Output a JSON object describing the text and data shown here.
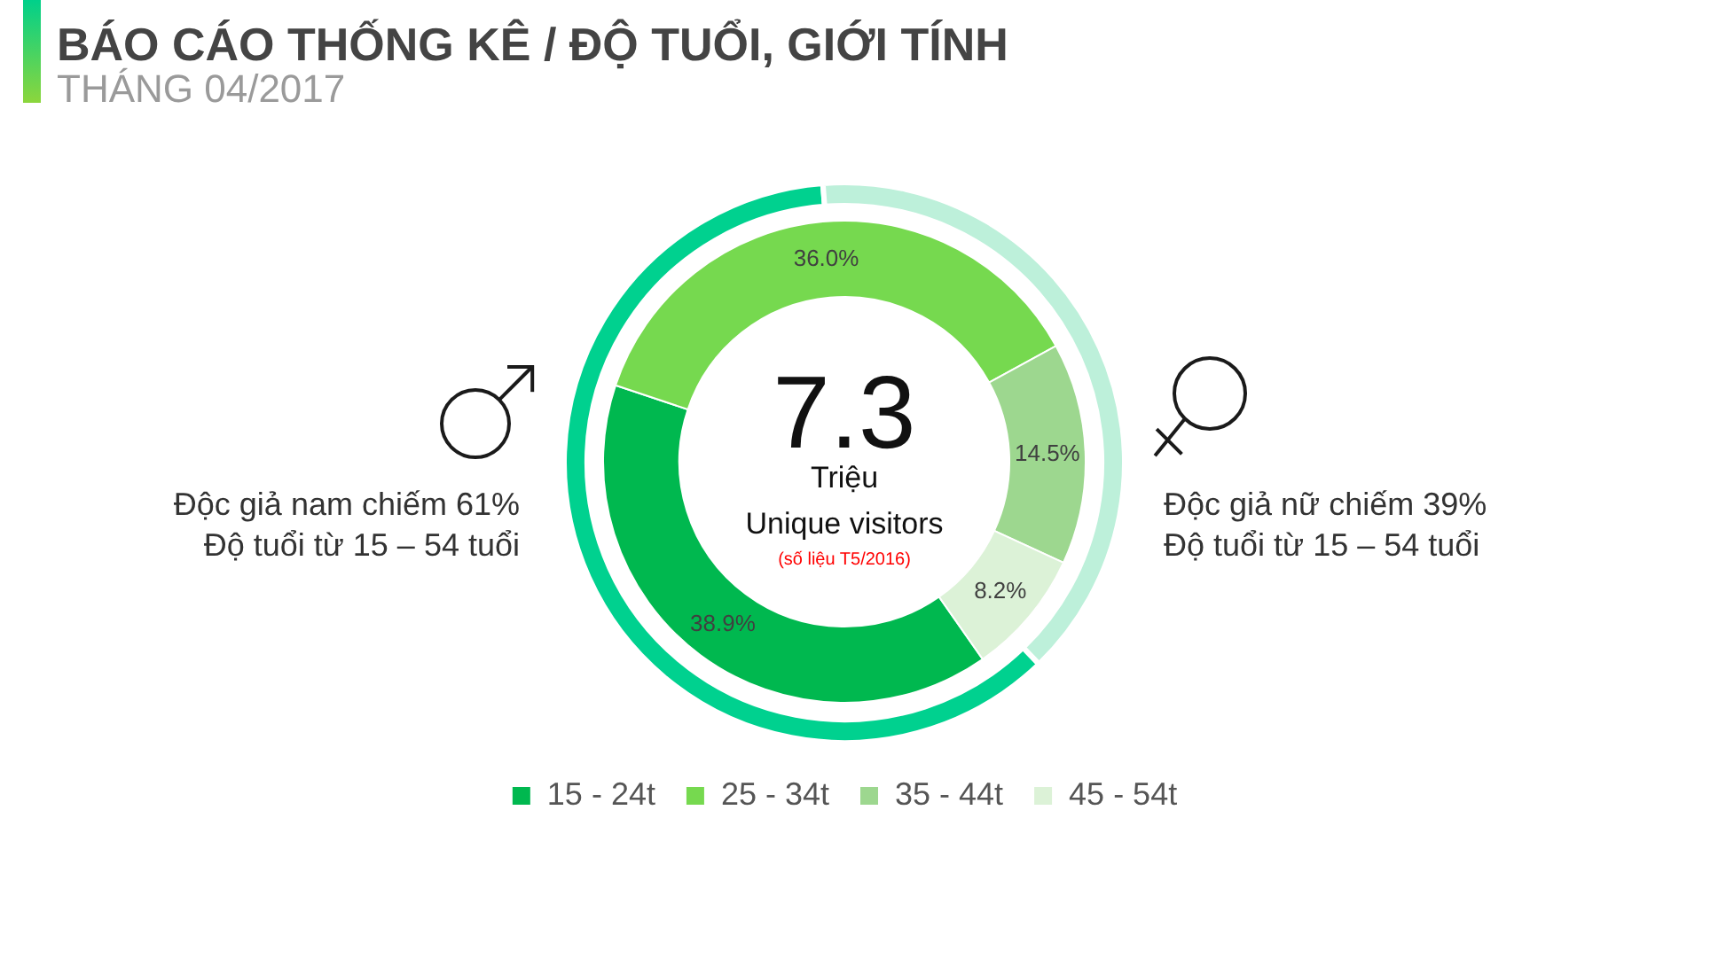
{
  "chart_data": [
    {
      "type": "donut",
      "title": "BÁO CÁO THỐNG KÊ / ĐỘ TUỔI, GIỚI TÍNH",
      "subtitle": "THÁNG 04/2017",
      "categories": [
        "15 - 24t",
        "25 - 34t",
        "35 - 44t",
        "45 - 54t"
      ],
      "values": [
        38.9,
        36.0,
        14.5,
        8.2
      ],
      "colors": [
        "#00b84f",
        "#76d94f",
        "#9dd78f",
        "#dcf2d7"
      ],
      "value_labels": [
        "38.9%",
        "36.0%",
        "14.5%",
        "8.2%"
      ],
      "legend": "bottom",
      "annotations": [
        "7.3",
        "Triệu",
        "Unique visitors",
        "(số liệu T5/2016)"
      ]
    },
    {
      "type": "donut",
      "categories": [
        "Độc giả nam chiếm 61%",
        "Độc giả nữ chiếm 39%"
      ],
      "values": [
        61,
        39
      ],
      "colors": [
        "#00d18f",
        "#bdf0da"
      ],
      "annotations": [
        "Độ tuổi từ 15 – 54 tuổi",
        "Độ tuổi từ 15 – 54 tuổi"
      ]
    }
  ]
}
